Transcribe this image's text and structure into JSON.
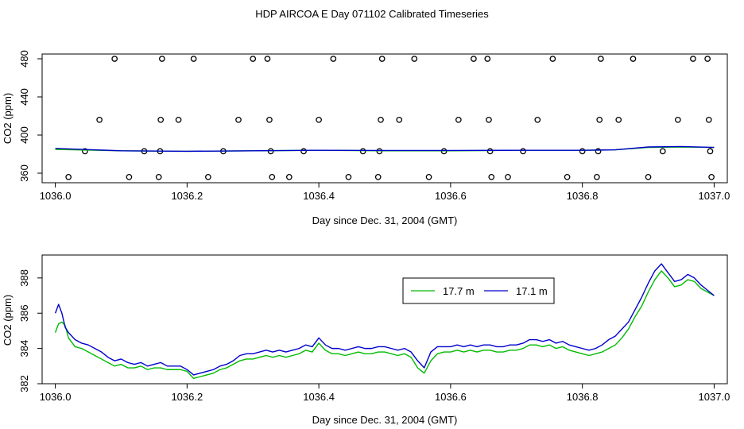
{
  "title": "HDP AIRCOA E  Day 071102  Calibrated Timeseries",
  "chart_data": [
    {
      "type": "scatter",
      "title": "",
      "xlabel": "Day since Dec. 31, 2004 (GMT)",
      "ylabel": "CO2 (ppm)",
      "xlim": [
        1035.98,
        1037.02
      ],
      "ylim": [
        350,
        485
      ],
      "xticks": [
        "1036.0",
        "1036.2",
        "1036.4",
        "1036.6",
        "1036.8",
        "1037.0"
      ],
      "yticks": [
        "360",
        "400",
        "440",
        "480"
      ],
      "points": [
        [
          1036.02,
          356
        ],
        [
          1036.045,
          383
        ],
        [
          1036.067,
          416
        ],
        [
          1036.09,
          480
        ],
        [
          1036.112,
          356
        ],
        [
          1036.135,
          383
        ],
        [
          1036.157,
          356
        ],
        [
          1036.159,
          383
        ],
        [
          1036.16,
          416
        ],
        [
          1036.162,
          480
        ],
        [
          1036.187,
          416
        ],
        [
          1036.21,
          480
        ],
        [
          1036.232,
          356
        ],
        [
          1036.255,
          383
        ],
        [
          1036.278,
          416
        ],
        [
          1036.3,
          480
        ],
        [
          1036.322,
          480
        ],
        [
          1036.325,
          416
        ],
        [
          1036.327,
          383
        ],
        [
          1036.329,
          356
        ],
        [
          1036.355,
          356
        ],
        [
          1036.377,
          383
        ],
        [
          1036.4,
          416
        ],
        [
          1036.422,
          480
        ],
        [
          1036.445,
          356
        ],
        [
          1036.467,
          383
        ],
        [
          1036.49,
          356
        ],
        [
          1036.492,
          383
        ],
        [
          1036.494,
          416
        ],
        [
          1036.496,
          480
        ],
        [
          1036.522,
          416
        ],
        [
          1036.545,
          480
        ],
        [
          1036.567,
          356
        ],
        [
          1036.59,
          383
        ],
        [
          1036.612,
          416
        ],
        [
          1036.635,
          480
        ],
        [
          1036.656,
          480
        ],
        [
          1036.658,
          416
        ],
        [
          1036.66,
          383
        ],
        [
          1036.662,
          356
        ],
        [
          1036.687,
          356
        ],
        [
          1036.71,
          383
        ],
        [
          1036.732,
          416
        ],
        [
          1036.755,
          480
        ],
        [
          1036.777,
          356
        ],
        [
          1036.8,
          383
        ],
        [
          1036.822,
          356
        ],
        [
          1036.824,
          383
        ],
        [
          1036.826,
          416
        ],
        [
          1036.828,
          480
        ],
        [
          1036.855,
          416
        ],
        [
          1036.877,
          480
        ],
        [
          1036.9,
          356
        ],
        [
          1036.922,
          383
        ],
        [
          1036.945,
          416
        ],
        [
          1036.968,
          480
        ],
        [
          1036.99,
          480
        ],
        [
          1036.992,
          416
        ],
        [
          1036.994,
          383
        ],
        [
          1036.996,
          356
        ]
      ],
      "series": [
        {
          "name": "green",
          "color": "#00bb00",
          "x": [
            1036.0,
            1036.1,
            1036.2,
            1036.3,
            1036.4,
            1036.5,
            1036.6,
            1036.7,
            1036.8,
            1036.85,
            1036.9,
            1036.95,
            1037.0
          ],
          "values": [
            385,
            383.5,
            383,
            383.5,
            384,
            383.5,
            383.5,
            384,
            384,
            384.5,
            387,
            387.5,
            387
          ]
        },
        {
          "name": "blue",
          "color": "#0000cc",
          "x": [
            1036.0,
            1036.1,
            1036.2,
            1036.3,
            1036.4,
            1036.5,
            1036.6,
            1036.7,
            1036.8,
            1036.85,
            1036.9,
            1036.95,
            1037.0
          ],
          "values": [
            386,
            383.5,
            383,
            383.5,
            384,
            383.8,
            383.8,
            384,
            384,
            384.5,
            387.5,
            388,
            387
          ]
        }
      ]
    },
    {
      "type": "line",
      "title": "",
      "xlabel": "Day since Dec. 31, 2004 (GMT)",
      "ylabel": "CO2 (ppm)",
      "xlim": [
        1035.98,
        1037.02
      ],
      "ylim": [
        382,
        389.3
      ],
      "xticks": [
        "1036.0",
        "1036.2",
        "1036.4",
        "1036.6",
        "1036.8",
        "1037.0"
      ],
      "yticks": [
        "382",
        "384",
        "386",
        "388"
      ],
      "legend_position": "top-right",
      "x": [
        1036.0,
        1036.005,
        1036.01,
        1036.015,
        1036.02,
        1036.03,
        1036.04,
        1036.05,
        1036.06,
        1036.07,
        1036.08,
        1036.09,
        1036.1,
        1036.11,
        1036.12,
        1036.13,
        1036.14,
        1036.15,
        1036.16,
        1036.17,
        1036.18,
        1036.19,
        1036.2,
        1036.21,
        1036.22,
        1036.23,
        1036.24,
        1036.25,
        1036.26,
        1036.27,
        1036.28,
        1036.29,
        1036.3,
        1036.31,
        1036.32,
        1036.33,
        1036.34,
        1036.35,
        1036.36,
        1036.37,
        1036.38,
        1036.39,
        1036.4,
        1036.41,
        1036.42,
        1036.43,
        1036.44,
        1036.45,
        1036.46,
        1036.47,
        1036.48,
        1036.49,
        1036.5,
        1036.51,
        1036.52,
        1036.53,
        1036.54,
        1036.55,
        1036.56,
        1036.57,
        1036.58,
        1036.59,
        1036.6,
        1036.61,
        1036.62,
        1036.63,
        1036.64,
        1036.65,
        1036.66,
        1036.67,
        1036.68,
        1036.69,
        1036.7,
        1036.71,
        1036.72,
        1036.73,
        1036.74,
        1036.75,
        1036.76,
        1036.77,
        1036.78,
        1036.79,
        1036.8,
        1036.81,
        1036.82,
        1036.83,
        1036.84,
        1036.85,
        1036.86,
        1036.87,
        1036.88,
        1036.89,
        1036.9,
        1036.91,
        1036.92,
        1036.93,
        1036.94,
        1036.95,
        1036.96,
        1036.97,
        1036.98,
        1036.99,
        1037.0
      ],
      "series": [
        {
          "name": "17.7 m",
          "color": "#00bb00",
          "values": [
            384.9,
            385.4,
            385.5,
            385.3,
            384.6,
            384.1,
            384.0,
            383.8,
            383.6,
            383.4,
            383.2,
            383.0,
            383.1,
            382.9,
            382.9,
            383.0,
            382.8,
            382.9,
            382.9,
            382.8,
            382.8,
            382.8,
            382.7,
            382.3,
            382.4,
            382.5,
            382.6,
            382.8,
            382.9,
            383.1,
            383.3,
            383.4,
            383.4,
            383.5,
            383.6,
            383.5,
            383.6,
            383.5,
            383.6,
            383.7,
            383.9,
            383.8,
            384.3,
            383.9,
            383.7,
            383.7,
            383.6,
            383.7,
            383.8,
            383.7,
            383.7,
            383.8,
            383.8,
            383.7,
            383.6,
            383.7,
            383.5,
            382.9,
            382.6,
            383.3,
            383.7,
            383.8,
            383.8,
            383.9,
            383.8,
            383.9,
            383.8,
            383.9,
            383.9,
            383.8,
            383.8,
            383.9,
            383.9,
            384.0,
            384.2,
            384.2,
            384.1,
            384.2,
            384.0,
            384.1,
            383.9,
            383.8,
            383.7,
            383.6,
            383.7,
            383.8,
            384.0,
            384.2,
            384.6,
            385.1,
            385.8,
            386.4,
            387.2,
            387.9,
            388.4,
            388.0,
            387.5,
            387.6,
            387.9,
            387.8,
            387.4,
            387.2,
            387.0
          ]
        },
        {
          "name": "17.1 m",
          "color": "#0000cc",
          "values": [
            386.0,
            386.5,
            386.0,
            385.2,
            384.9,
            384.5,
            384.3,
            384.2,
            384.0,
            383.8,
            383.5,
            383.3,
            383.4,
            383.2,
            383.1,
            383.2,
            383.0,
            383.1,
            383.2,
            383.0,
            383.0,
            383.0,
            382.8,
            382.5,
            382.6,
            382.7,
            382.8,
            383.0,
            383.1,
            383.3,
            383.6,
            383.7,
            383.7,
            383.8,
            383.9,
            383.8,
            383.9,
            383.8,
            383.9,
            384.0,
            384.2,
            384.1,
            384.6,
            384.2,
            384.0,
            384.0,
            383.9,
            384.0,
            384.1,
            384.0,
            384.0,
            384.1,
            384.1,
            384.0,
            383.9,
            384.0,
            383.8,
            383.3,
            382.9,
            383.8,
            384.1,
            384.1,
            384.1,
            384.2,
            384.1,
            384.2,
            384.1,
            384.2,
            384.2,
            384.1,
            384.1,
            384.2,
            384.2,
            384.3,
            384.5,
            384.5,
            384.4,
            384.5,
            384.3,
            384.4,
            384.2,
            384.1,
            384.0,
            383.9,
            384.0,
            384.2,
            384.5,
            384.7,
            385.1,
            385.5,
            386.2,
            386.9,
            387.7,
            388.4,
            388.8,
            388.3,
            387.8,
            387.9,
            388.2,
            388.0,
            387.6,
            387.3,
            387.0
          ]
        }
      ]
    }
  ]
}
